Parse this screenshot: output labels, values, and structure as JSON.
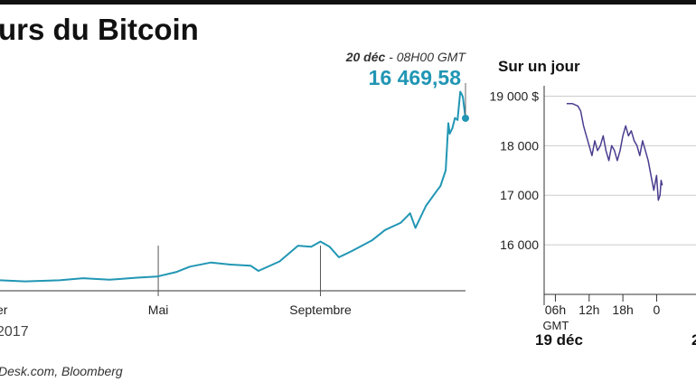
{
  "title": "urs du Bitcoin",
  "source": "Desk.com, Bloomberg",
  "annotation": {
    "date": "20 déc",
    "time": " - 08H00 GMT",
    "value": "16 469,58"
  },
  "year_label": "2017",
  "colors": {
    "main_line": "#2196b4",
    "day_line": "#4a3d8f",
    "axis": "#333333",
    "grid": "#cccccc"
  },
  "chart_data": [
    {
      "type": "line",
      "title": "urs du Bitcoin",
      "x_tick_labels": [
        "er",
        "Mai",
        "Septembre"
      ],
      "x_tick_positions": [
        "2017-01-01",
        "2017-05-01",
        "2017-09-01"
      ],
      "xlim": [
        "2017-01-01",
        "2017-12-20"
      ],
      "ylim": [
        0,
        20000
      ],
      "grid": false,
      "series": [
        {
          "x": [
            "2017-01-01",
            "2017-01-20",
            "2017-02-15",
            "2017-03-05",
            "2017-03-25",
            "2017-04-15",
            "2017-04-30",
            "2017-05-15",
            "2017-05-25",
            "2017-06-10",
            "2017-06-25",
            "2017-07-10",
            "2017-07-16",
            "2017-08-01",
            "2017-08-15",
            "2017-08-25",
            "2017-09-01",
            "2017-09-08",
            "2017-09-15",
            "2017-09-25",
            "2017-10-10",
            "2017-10-20",
            "2017-11-01",
            "2017-11-08",
            "2017-11-12",
            "2017-11-20",
            "2017-11-28",
            "2017-12-01",
            "2017-12-05",
            "2017-12-07",
            "2017-12-08",
            "2017-12-10",
            "2017-12-12",
            "2017-12-14",
            "2017-12-16",
            "2017-12-17",
            "2017-12-18",
            "2017-12-19",
            "2017-12-20"
          ],
          "y": [
            1000,
            900,
            1000,
            1200,
            1050,
            1250,
            1350,
            1800,
            2300,
            2700,
            2500,
            2400,
            1900,
            2800,
            4300,
            4200,
            4700,
            4200,
            3200,
            3800,
            4800,
            5800,
            6500,
            7400,
            6000,
            8100,
            9500,
            10000,
            11500,
            16000,
            15000,
            15500,
            16500,
            16300,
            19000,
            18800,
            18500,
            17500,
            16469.58
          ]
        }
      ]
    },
    {
      "type": "line",
      "title": "Sur un jour",
      "y_tick_labels": [
        "19 000 $",
        "18 000",
        "17 000",
        "16 000"
      ],
      "y_ticks": [
        19000,
        18000,
        17000,
        16000
      ],
      "x_tick_labels": [
        "06h",
        "12h",
        "18h",
        "0"
      ],
      "x_ticks": [
        6,
        12,
        18,
        24
      ],
      "x_sub_label": "GMT",
      "day_labels": [
        "19 déc",
        "2"
      ],
      "xlim": [
        4,
        31
      ],
      "ylim": [
        15000,
        19300
      ],
      "grid": true,
      "series": [
        {
          "x": [
            8,
            9,
            10,
            10.5,
            11,
            11.5,
            12,
            12.5,
            13,
            13.5,
            14,
            14.5,
            15,
            15.5,
            16,
            16.5,
            17,
            17.5,
            18,
            18.5,
            19,
            19.5,
            20,
            20.5,
            21,
            21.5,
            22,
            22.5,
            23,
            23.5,
            24,
            24.3,
            24.6,
            24.8,
            25
          ],
          "y": [
            18850,
            18850,
            18800,
            18700,
            18400,
            18200,
            18000,
            17800,
            18100,
            17900,
            18000,
            18200,
            17900,
            17700,
            18000,
            17900,
            17700,
            17900,
            18200,
            18400,
            18200,
            18300,
            18100,
            18000,
            17800,
            18100,
            17900,
            17700,
            17400,
            17100,
            17400,
            16900,
            17000,
            17300,
            17200
          ]
        }
      ]
    }
  ]
}
